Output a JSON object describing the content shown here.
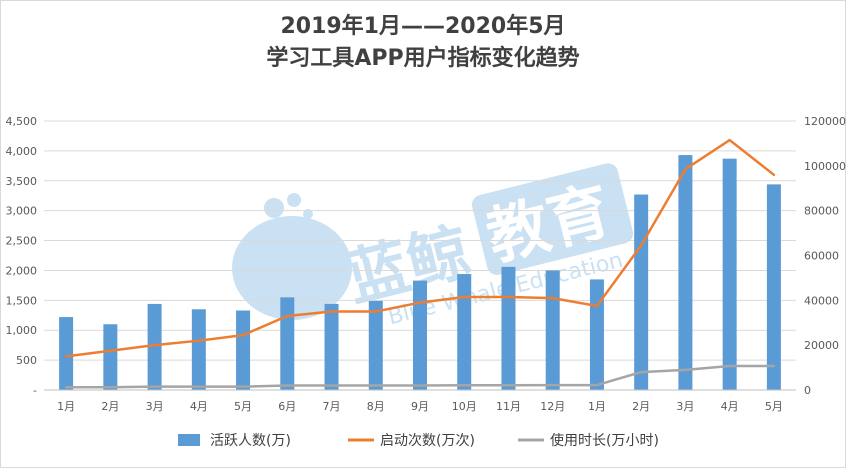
{
  "chart_data": {
    "type": "bar",
    "title_line1": "2019年1月——2020年5月",
    "title_line2": "学习工具APP用户指标变化趋势",
    "categories": [
      "1月",
      "2月",
      "3月",
      "4月",
      "5月",
      "6月",
      "7月",
      "8月",
      "9月",
      "10月",
      "11月",
      "12月",
      "1月",
      "2月",
      "3月",
      "4月",
      "5月"
    ],
    "y_left": {
      "min": 0,
      "max": 4500,
      "ticks": [
        "-",
        "500",
        "1,000",
        "1,500",
        "2,000",
        "2,500",
        "3,000",
        "3,500",
        "4,000",
        "4,500"
      ]
    },
    "y_right": {
      "min": 0,
      "max": 120000,
      "ticks": [
        "0",
        "20000",
        "40000",
        "60000",
        "80000",
        "100000",
        "120000"
      ]
    },
    "grid": true,
    "legend_position": "bottom",
    "series": [
      {
        "name": "活跃人数(万)",
        "type": "bar",
        "axis": "left",
        "color": "#5b9bd5",
        "values": [
          1220,
          1100,
          1440,
          1350,
          1330,
          1550,
          1440,
          1490,
          1830,
          1940,
          2060,
          2000,
          1850,
          3270,
          3930,
          3870,
          3440
        ]
      },
      {
        "name": "启动次数(万次)",
        "type": "line",
        "axis": "right",
        "color": "#ed7d31",
        "values": [
          15000,
          17500,
          20000,
          22000,
          24500,
          33000,
          35000,
          35000,
          39000,
          41500,
          41500,
          41000,
          37500,
          64500,
          98500,
          111500,
          96000
        ]
      },
      {
        "name": "使用时长(万小时)",
        "type": "line",
        "axis": "right",
        "color": "#a5a5a5",
        "values": [
          1200,
          1200,
          1500,
          1500,
          1500,
          2000,
          2000,
          2000,
          2000,
          2100,
          2100,
          2200,
          2200,
          8000,
          9000,
          10700,
          10700
        ]
      }
    ]
  },
  "watermark": {
    "brand": "蓝鲸",
    "edu": "教育",
    "sub": "Blue Whale Education",
    "color": "#9fc8ea"
  }
}
